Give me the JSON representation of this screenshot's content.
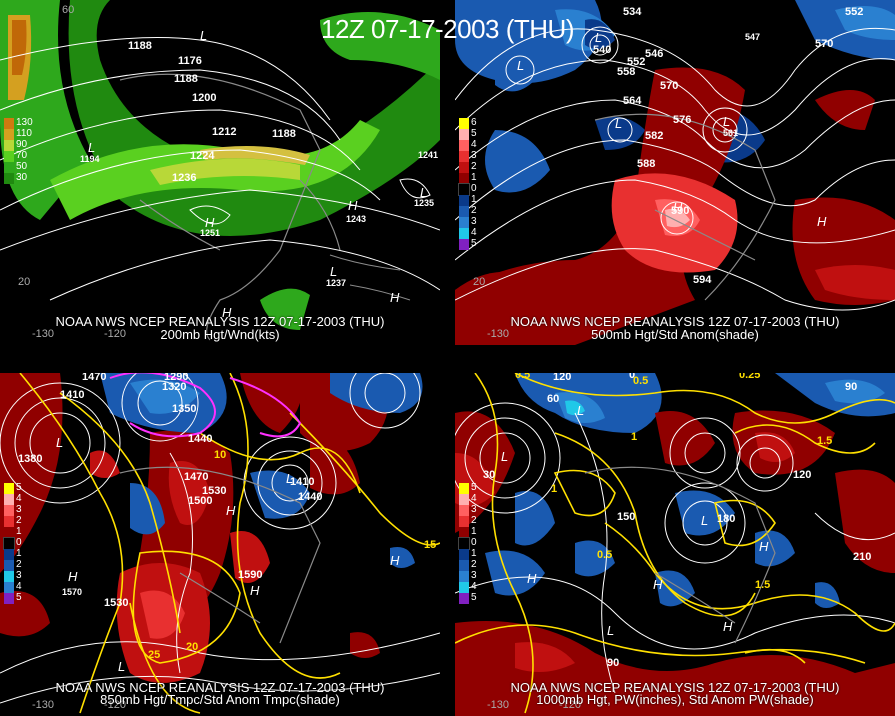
{
  "main_title": "12Z 07-17-2003 (THU)",
  "panels": [
    {
      "id": "200mb",
      "line1": "NOAA NWS NCEP REANALYSIS 12Z 07-17-2003 (THU)",
      "line2": "200mb Hgt/Wnd(kts)",
      "scale": [
        {
          "label": "130",
          "color": "#d07a10"
        },
        {
          "label": "110",
          "color": "#d4a020"
        },
        {
          "label": "90",
          "color": "#b8d838"
        },
        {
          "label": "70",
          "color": "#5ad020"
        },
        {
          "label": "50",
          "color": "#2ea81c"
        },
        {
          "label": "30",
          "color": "#208a10"
        }
      ],
      "contour_labels": [
        "1188",
        "1176",
        "1188",
        "1200",
        "1212",
        "1188",
        "1224",
        "1236",
        "1251",
        "1243",
        "1237",
        "1235",
        "1241",
        "1194",
        "1168"
      ],
      "axis_labels": [
        "60",
        "20",
        "-120",
        "-130"
      ]
    },
    {
      "id": "500mb",
      "line1": "NOAA NWS NCEP REANALYSIS 12Z 07-17-2003 (THU)",
      "line2": "500mb Hgt/Std Anom(shade)",
      "scale": [
        {
          "label": "6",
          "color": "#ffff00"
        },
        {
          "label": "5",
          "color": "#ffb0b0"
        },
        {
          "label": "4",
          "color": "#ff6060"
        },
        {
          "label": "3",
          "color": "#e83030"
        },
        {
          "label": "2",
          "color": "#c01010"
        },
        {
          "label": "1",
          "color": "#900000"
        },
        {
          "label": "0",
          "color": "#000000"
        },
        {
          "label": "1",
          "color": "#0a3a8a"
        },
        {
          "label": "2",
          "color": "#1a5ab0"
        },
        {
          "label": "3",
          "color": "#2a80d0"
        },
        {
          "label": "4",
          "color": "#20c8e8"
        },
        {
          "label": "5",
          "color": "#8020c0"
        }
      ],
      "contour_labels": [
        "534",
        "540",
        "546",
        "552",
        "558",
        "564",
        "570",
        "576",
        "582",
        "588",
        "594",
        "547",
        "561",
        "552",
        "570",
        "590"
      ],
      "axis_labels": [
        "20",
        "-130"
      ]
    },
    {
      "id": "850mb",
      "line1": "NOAA NWS NCEP REANALYSIS 12Z 07-17-2003 (THU)",
      "line2": "850mb Hgt/Tmpc/Std Anom Tmpc(shade)",
      "scale": [
        {
          "label": "5",
          "color": "#ffff00"
        },
        {
          "label": "4",
          "color": "#ffb0b0"
        },
        {
          "label": "3",
          "color": "#ff6060"
        },
        {
          "label": "2",
          "color": "#e83030"
        },
        {
          "label": "1",
          "color": "#900000"
        },
        {
          "label": "0",
          "color": "#000000"
        },
        {
          "label": "1",
          "color": "#0a3a8a"
        },
        {
          "label": "2",
          "color": "#1a5ab0"
        },
        {
          "label": "3",
          "color": "#20c8e8"
        },
        {
          "label": "4",
          "color": "#2a80d0"
        },
        {
          "label": "5",
          "color": "#8020c0"
        }
      ],
      "contour_labels": [
        "1470",
        "1290",
        "1320",
        "1350",
        "1410",
        "1380",
        "1440",
        "1470",
        "1500",
        "1530",
        "1410",
        "1440",
        "1590",
        "1530",
        "1570",
        "15",
        "20",
        "25",
        "10"
      ],
      "axis_labels": [
        "-130",
        "-120"
      ]
    },
    {
      "id": "1000mb",
      "line1": "NOAA NWS NCEP REANALYSIS 12Z 07-17-2003 (THU)",
      "line2": "1000mb Hgt, PW(inches), Std Anom PW(shade)",
      "scale": [
        {
          "label": "5",
          "color": "#ffff00"
        },
        {
          "label": "4",
          "color": "#ffb0b0"
        },
        {
          "label": "3",
          "color": "#ff6060"
        },
        {
          "label": "2",
          "color": "#e83030"
        },
        {
          "label": "1",
          "color": "#900000"
        },
        {
          "label": "0",
          "color": "#000000"
        },
        {
          "label": "1",
          "color": "#0a3a8a"
        },
        {
          "label": "2",
          "color": "#1a5ab0"
        },
        {
          "label": "3",
          "color": "#2a80d0"
        },
        {
          "label": "4",
          "color": "#20c8e8"
        },
        {
          "label": "5",
          "color": "#8020c0"
        }
      ],
      "contour_labels": [
        "0.5",
        "0.5",
        "0.25",
        "120",
        "90",
        "60",
        "30",
        "0",
        "1",
        "1.5",
        "150",
        "180",
        "210",
        "120",
        "90",
        "1.5",
        "0.5",
        "1"
      ],
      "axis_labels": [
        "-130",
        "-120"
      ]
    }
  ],
  "colors": {
    "background": "#000000",
    "contour_white": "#ffffff",
    "contour_yellow": "#ffe000",
    "contour_magenta": "#ff30ff",
    "land_outline": "#8a8a8a"
  }
}
